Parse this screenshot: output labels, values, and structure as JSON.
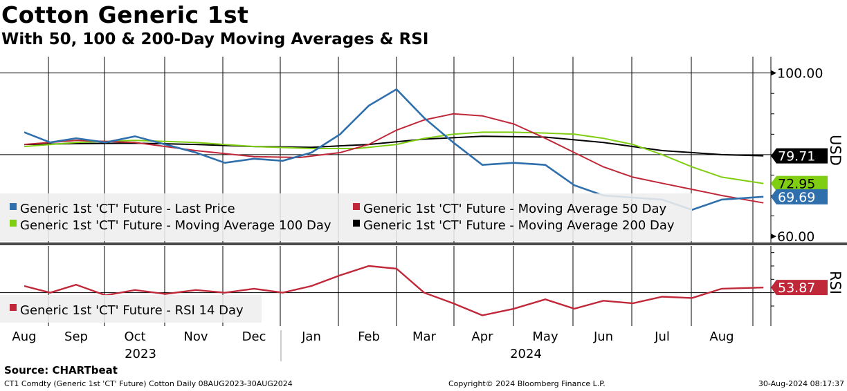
{
  "title": "Cotton Generic 1st",
  "subtitle": "With 50, 100 & 200-Day Moving Averages & RSI",
  "source": "Source: CHARTbeat",
  "footer": {
    "left": "CT1 Comdty (Generic 1st 'CT' Future) Cotton  Daily 08AUG2023-30AUG2024",
    "center": "Copyright© 2024 Bloomberg Finance L.P.",
    "right": "30-Aug-2024 08:17:37"
  },
  "chart_data": {
    "type": "line",
    "x_months": [
      "Aug",
      "Sep",
      "Oct",
      "Nov",
      "Dec",
      "Jan",
      "Feb",
      "Mar",
      "Apr",
      "May",
      "Jun",
      "Jul",
      "Aug"
    ],
    "years": [
      "2023",
      "2024"
    ],
    "price_panel": {
      "ylabel": "USD",
      "yticks": [
        "100.00",
        "60.00"
      ],
      "ylim": [
        58.5,
        104
      ],
      "legend": [
        {
          "label": "Generic 1st 'CT' Future - Last Price",
          "color": "#2f6fac"
        },
        {
          "label": "Generic 1st 'CT' Future - Moving Average 50 Day",
          "color": "#c0283a"
        },
        {
          "label": "Generic 1st 'CT' Future - Moving Average 100 Day",
          "color": "#7fce12"
        },
        {
          "label": "Generic 1st 'CT' Future - Moving Average 200 Day",
          "color": "#000000"
        }
      ],
      "series": [
        {
          "name": "Last Price",
          "color": "#2f6fac",
          "x": [
            0.0,
            0.5,
            1.0,
            1.5,
            2.0,
            2.5,
            3.0,
            3.5,
            4.0,
            4.5,
            5.0,
            5.5,
            6.0,
            6.5,
            7.0,
            7.5,
            8.0,
            8.5,
            9.0,
            9.5,
            10.0,
            10.5,
            11.0,
            11.5,
            12.0,
            12.7
          ],
          "values": [
            85.5,
            83.0,
            84.0,
            83.0,
            84.5,
            82.5,
            80.5,
            78.0,
            79.0,
            78.5,
            80.5,
            85.0,
            92.0,
            96.0,
            89.0,
            83.0,
            77.5,
            78.0,
            77.5,
            72.5,
            70.0,
            69.5,
            69.0,
            66.5,
            69.0,
            69.69
          ]
        },
        {
          "name": "MA 50",
          "color": "#c0283a",
          "x": [
            0.0,
            1.0,
            2.0,
            3.0,
            4.0,
            4.8,
            5.5,
            6.0,
            6.5,
            7.0,
            7.5,
            8.0,
            8.5,
            9.0,
            9.5,
            10.0,
            10.5,
            11.0,
            11.5,
            12.0,
            12.7
          ],
          "values": [
            82.5,
            83.5,
            83.0,
            81.0,
            79.5,
            79.3,
            80.5,
            82.5,
            86.0,
            88.5,
            90.0,
            89.5,
            87.5,
            84.0,
            80.5,
            77.0,
            74.5,
            73.0,
            71.5,
            70.0,
            68.2
          ]
        },
        {
          "name": "MA 100",
          "color": "#7fce12",
          "x": [
            0.0,
            1.0,
            2.0,
            3.0,
            4.0,
            5.0,
            5.8,
            6.5,
            7.0,
            7.5,
            8.0,
            8.5,
            9.0,
            9.5,
            10.0,
            10.5,
            11.0,
            11.5,
            12.0,
            12.7
          ],
          "values": [
            82.0,
            83.0,
            83.5,
            83.0,
            82.0,
            81.5,
            81.5,
            82.5,
            84.0,
            85.0,
            85.5,
            85.5,
            85.3,
            85.0,
            84.0,
            82.5,
            80.0,
            77.0,
            74.5,
            72.95
          ]
        },
        {
          "name": "MA 200",
          "color": "#000000",
          "x": [
            0.0,
            1.0,
            2.0,
            3.0,
            4.0,
            5.0,
            6.0,
            7.0,
            8.0,
            9.0,
            10.0,
            10.5,
            11.0,
            11.5,
            12.0,
            12.7
          ],
          "values": [
            82.5,
            82.7,
            82.8,
            82.5,
            82.0,
            81.8,
            82.5,
            83.8,
            84.5,
            84.3,
            83.0,
            82.0,
            81.0,
            80.5,
            80.0,
            79.71
          ]
        }
      ],
      "last_values": [
        {
          "label": "79.71",
          "value": 79.71,
          "color": "#000000",
          "text_color": "#ffffff"
        },
        {
          "label": "72.95",
          "value": 72.95,
          "color": "#7fce12",
          "text_color": "#000000"
        },
        {
          "label": "69.69",
          "value": 69.69,
          "color": "#2f6fac",
          "text_color": "#ffffff"
        }
      ]
    },
    "rsi_panel": {
      "ylabel": "RSI",
      "ylim": [
        25,
        85
      ],
      "legend": [
        {
          "label": "Generic 1st 'CT' Future - RSI 14 Day",
          "color": "#c0283a"
        }
      ],
      "series": {
        "name": "RSI 14 Day",
        "color": "#c0283a",
        "x": [
          0.0,
          0.5,
          1.0,
          1.5,
          2.0,
          2.5,
          3.0,
          3.5,
          4.0,
          4.5,
          5.0,
          5.5,
          6.0,
          6.5,
          7.0,
          7.5,
          8.0,
          8.5,
          9.0,
          9.5,
          10.0,
          10.5,
          11.0,
          11.5,
          12.0,
          12.7
        ],
        "values": [
          55.0,
          50.0,
          56.0,
          48.0,
          52.0,
          49.0,
          52.0,
          50.0,
          53.0,
          50.0,
          55.0,
          63.0,
          70.0,
          68.0,
          50.0,
          42.0,
          33.0,
          38.0,
          45.0,
          38.0,
          44.0,
          42.0,
          47.0,
          46.0,
          53.0,
          53.87
        ]
      },
      "last_value": {
        "label": "53.87",
        "value": 53.87,
        "color": "#c0283a",
        "text_color": "#ffffff"
      }
    }
  }
}
